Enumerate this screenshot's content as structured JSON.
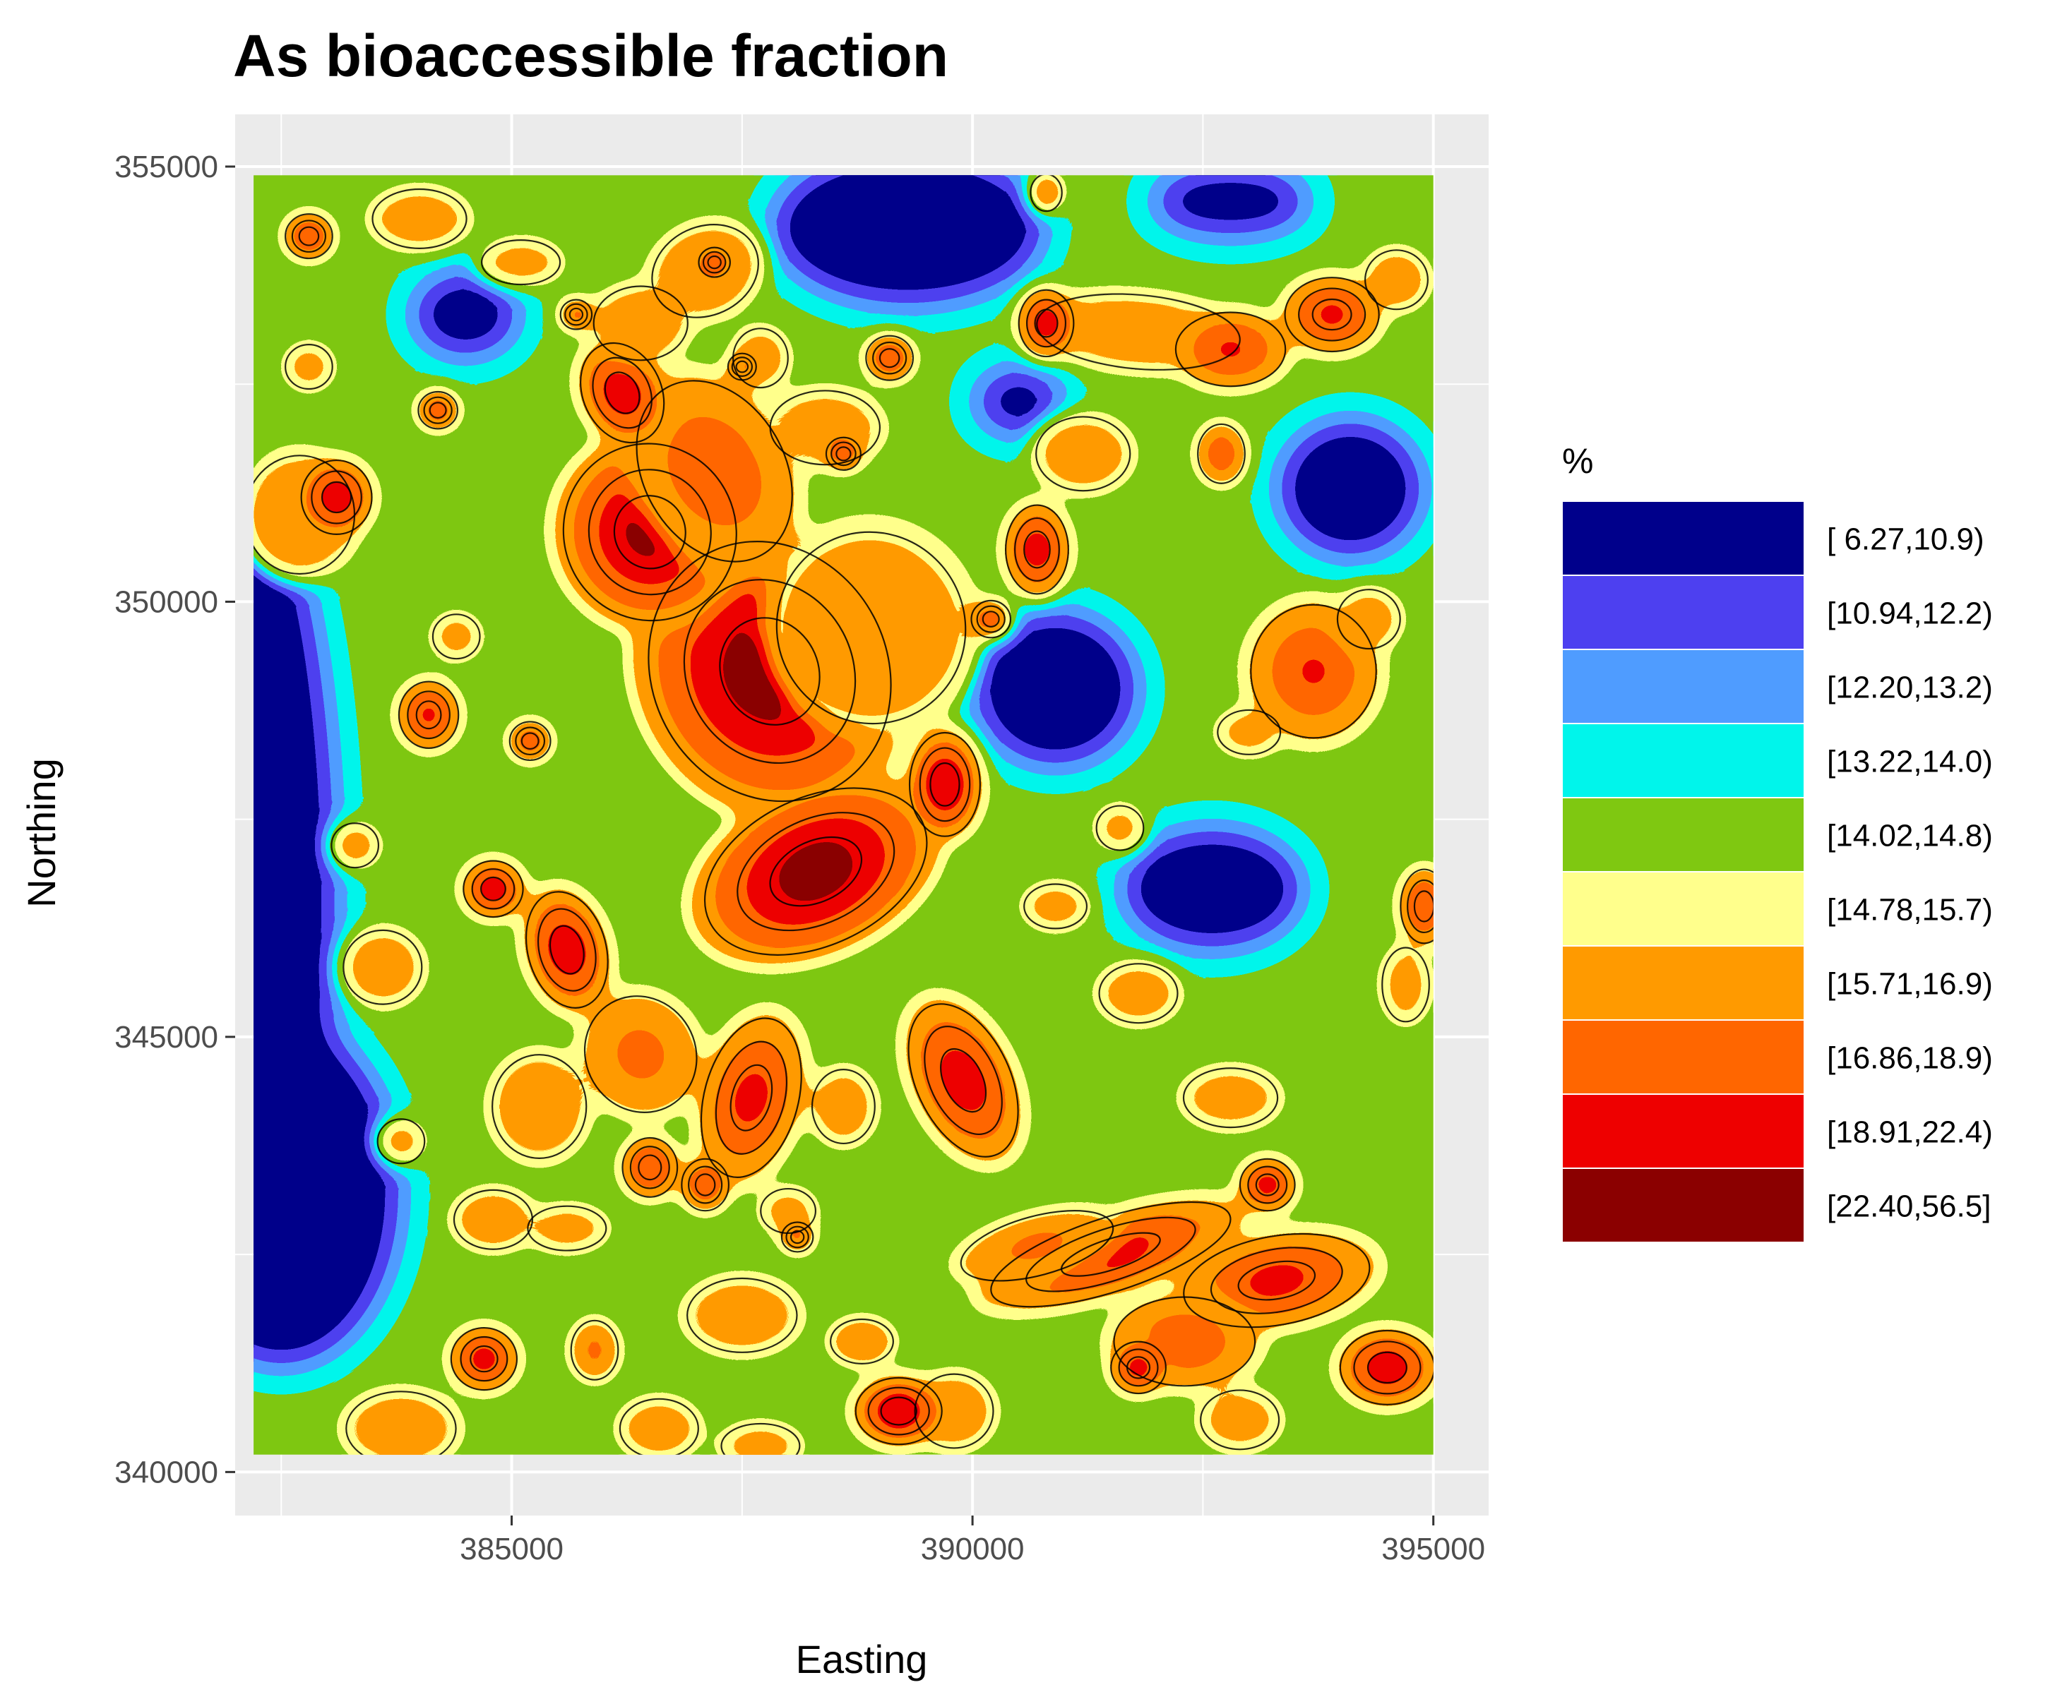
{
  "chart_data": {
    "type": "heatmap",
    "title": "As bioaccessible fraction",
    "xlabel": "Easting",
    "ylabel": "Northing",
    "xlim": [
      382000,
      395600
    ],
    "ylim": [
      339500,
      355600
    ],
    "data_extent": {
      "x": [
        382200,
        395000
      ],
      "y": [
        340200,
        354900
      ]
    },
    "x_ticks": [
      385000,
      390000,
      395000
    ],
    "x_tick_labels": [
      "385000",
      "390000",
      "395000"
    ],
    "y_ticks": [
      340000,
      345000,
      350000,
      355000
    ],
    "y_tick_labels": [
      "340000",
      "345000",
      "350000",
      "355000"
    ],
    "grid": true,
    "panel_background": "#ebebeb",
    "legend": {
      "title": "%",
      "position": "right",
      "classes": [
        {
          "label": "[ 6.27,10.9)",
          "color": "#00008b"
        },
        {
          "label": "[10.94,12.2)",
          "color": "#4d40f0"
        },
        {
          "label": "[12.20,13.2)",
          "color": "#4f9cff"
        },
        {
          "label": "[13.22,14.0)",
          "color": "#00f5eb"
        },
        {
          "label": "[14.02,14.8)",
          "color": "#7fc811"
        },
        {
          "label": "[14.78,15.7)",
          "color": "#ffff8c"
        },
        {
          "label": "[15.71,16.9)",
          "color": "#ff9a00"
        },
        {
          "label": "[16.86,18.9)",
          "color": "#ff6600"
        },
        {
          "label": "[18.91,22.4)",
          "color": "#ee0000"
        },
        {
          "label": "[22.40,56.5]",
          "color": "#8b0000"
        }
      ]
    },
    "hotspots": [
      {
        "x": 387800,
        "y": 349200,
        "rx": 1500,
        "ry": 1800,
        "level": 9.5,
        "angle": -28
      },
      {
        "x": 388300,
        "y": 346900,
        "rx": 1500,
        "ry": 1000,
        "level": 9.3,
        "angle": -25
      },
      {
        "x": 386500,
        "y": 350800,
        "rx": 1100,
        "ry": 1200,
        "level": 9.0,
        "angle": -20
      },
      {
        "x": 387200,
        "y": 351500,
        "rx": 900,
        "ry": 1300,
        "level": 7.5,
        "angle": -30
      },
      {
        "x": 386200,
        "y": 352400,
        "rx": 500,
        "ry": 700,
        "level": 8.5,
        "angle": -25
      },
      {
        "x": 389700,
        "y": 347900,
        "rx": 450,
        "ry": 700,
        "level": 8.8,
        "angle": 0
      },
      {
        "x": 389900,
        "y": 344500,
        "rx": 600,
        "ry": 1100,
        "level": 8.3,
        "angle": -25
      },
      {
        "x": 387600,
        "y": 344300,
        "rx": 600,
        "ry": 1100,
        "level": 8.0,
        "angle": 15
      },
      {
        "x": 385600,
        "y": 346000,
        "rx": 500,
        "ry": 800,
        "level": 8.5,
        "angle": -15
      },
      {
        "x": 384800,
        "y": 346700,
        "rx": 380,
        "ry": 380,
        "level": 8.7,
        "angle": 0
      },
      {
        "x": 385200,
        "y": 348400,
        "rx": 260,
        "ry": 260,
        "level": 8.3,
        "angle": 0
      },
      {
        "x": 386400,
        "y": 344800,
        "rx": 700,
        "ry": 800,
        "level": 7.0,
        "angle": -30
      },
      {
        "x": 386500,
        "y": 343500,
        "rx": 350,
        "ry": 400,
        "level": 8.2,
        "angle": 0
      },
      {
        "x": 387100,
        "y": 343300,
        "rx": 300,
        "ry": 350,
        "level": 8.0,
        "angle": 0
      },
      {
        "x": 385300,
        "y": 344200,
        "rx": 600,
        "ry": 700,
        "level": 6.4,
        "angle": 0
      },
      {
        "x": 391500,
        "y": 342500,
        "rx": 1600,
        "ry": 500,
        "level": 8.2,
        "angle": -18
      },
      {
        "x": 393300,
        "y": 342200,
        "rx": 1200,
        "ry": 600,
        "level": 8.0,
        "angle": -10
      },
      {
        "x": 394500,
        "y": 341200,
        "rx": 600,
        "ry": 500,
        "level": 8.5,
        "angle": 0
      },
      {
        "x": 392300,
        "y": 341500,
        "rx": 900,
        "ry": 600,
        "level": 7.5,
        "angle": 0
      },
      {
        "x": 391800,
        "y": 341200,
        "rx": 350,
        "ry": 350,
        "level": 8.6,
        "angle": 0
      },
      {
        "x": 393200,
        "y": 343300,
        "rx": 350,
        "ry": 350,
        "level": 8.6,
        "angle": 0
      },
      {
        "x": 390700,
        "y": 342600,
        "rx": 1000,
        "ry": 400,
        "level": 7.0,
        "angle": -15
      },
      {
        "x": 389200,
        "y": 340700,
        "rx": 550,
        "ry": 450,
        "level": 8.8,
        "angle": 0
      },
      {
        "x": 389800,
        "y": 340700,
        "rx": 500,
        "ry": 500,
        "level": 6.5,
        "angle": 0
      },
      {
        "x": 387500,
        "y": 341800,
        "rx": 700,
        "ry": 500,
        "level": 6.3,
        "angle": 0
      },
      {
        "x": 388800,
        "y": 341500,
        "rx": 400,
        "ry": 300,
        "level": 7.0,
        "angle": 0
      },
      {
        "x": 384700,
        "y": 341300,
        "rx": 420,
        "ry": 420,
        "level": 8.4,
        "angle": 0
      },
      {
        "x": 385900,
        "y": 341400,
        "rx": 300,
        "ry": 400,
        "level": 7.2,
        "angle": 0
      },
      {
        "x": 385600,
        "y": 342800,
        "rx": 500,
        "ry": 300,
        "level": 6.2,
        "angle": 0
      },
      {
        "x": 384800,
        "y": 342900,
        "rx": 500,
        "ry": 400,
        "level": 6.5,
        "angle": 0
      },
      {
        "x": 383800,
        "y": 343800,
        "rx": 300,
        "ry": 300,
        "level": 6.2,
        "angle": 0
      },
      {
        "x": 383600,
        "y": 345800,
        "rx": 500,
        "ry": 500,
        "level": 6.3,
        "angle": 0
      },
      {
        "x": 383100,
        "y": 351200,
        "rx": 450,
        "ry": 500,
        "level": 8.5,
        "angle": 0
      },
      {
        "x": 382800,
        "y": 354200,
        "rx": 300,
        "ry": 300,
        "level": 8.4,
        "angle": 0
      },
      {
        "x": 382700,
        "y": 351000,
        "rx": 700,
        "ry": 800,
        "level": 6.5,
        "angle": 0
      },
      {
        "x": 382800,
        "y": 352700,
        "rx": 300,
        "ry": 300,
        "level": 6.3,
        "angle": 0
      },
      {
        "x": 384200,
        "y": 352200,
        "rx": 250,
        "ry": 250,
        "level": 8.4,
        "angle": 0
      },
      {
        "x": 384100,
        "y": 348700,
        "rx": 380,
        "ry": 450,
        "level": 8.2,
        "angle": 0
      },
      {
        "x": 384400,
        "y": 349600,
        "rx": 300,
        "ry": 300,
        "level": 6.3,
        "angle": 0
      },
      {
        "x": 383300,
        "y": 347200,
        "rx": 300,
        "ry": 300,
        "level": 6.4,
        "angle": 0
      },
      {
        "x": 384000,
        "y": 354400,
        "rx": 600,
        "ry": 400,
        "level": 6.3,
        "angle": 0
      },
      {
        "x": 385100,
        "y": 353900,
        "rx": 500,
        "ry": 300,
        "level": 6.2,
        "angle": 0
      },
      {
        "x": 387100,
        "y": 353800,
        "rx": 700,
        "ry": 600,
        "level": 6.5,
        "angle": -25
      },
      {
        "x": 387200,
        "y": 353900,
        "rx": 200,
        "ry": 200,
        "level": 8.4,
        "angle": 0
      },
      {
        "x": 385700,
        "y": 353300,
        "rx": 200,
        "ry": 200,
        "level": 8.4,
        "angle": 0
      },
      {
        "x": 386400,
        "y": 353200,
        "rx": 600,
        "ry": 500,
        "level": 6.4,
        "angle": 0
      },
      {
        "x": 387700,
        "y": 352800,
        "rx": 350,
        "ry": 400,
        "level": 6.4,
        "angle": 0
      },
      {
        "x": 387500,
        "y": 352700,
        "rx": 180,
        "ry": 180,
        "level": 8.1,
        "angle": 0
      },
      {
        "x": 388600,
        "y": 351700,
        "rx": 220,
        "ry": 220,
        "level": 8.6,
        "angle": 0
      },
      {
        "x": 388400,
        "y": 352000,
        "rx": 700,
        "ry": 500,
        "level": 6.2,
        "angle": 0
      },
      {
        "x": 389100,
        "y": 352800,
        "rx": 300,
        "ry": 300,
        "level": 8.3,
        "angle": 0
      },
      {
        "x": 388900,
        "y": 349700,
        "rx": 1200,
        "ry": 1300,
        "level": 6.4,
        "angle": -25
      },
      {
        "x": 390700,
        "y": 350600,
        "rx": 400,
        "ry": 600,
        "level": 8.4,
        "angle": 0
      },
      {
        "x": 390800,
        "y": 353200,
        "rx": 350,
        "ry": 450,
        "level": 8.6,
        "angle": 0
      },
      {
        "x": 390800,
        "y": 354700,
        "rx": 200,
        "ry": 250,
        "level": 7.8,
        "angle": 0
      },
      {
        "x": 391800,
        "y": 353100,
        "rx": 1300,
        "ry": 500,
        "level": 6.3,
        "angle": 5
      },
      {
        "x": 392800,
        "y": 352900,
        "rx": 700,
        "ry": 500,
        "level": 7.9,
        "angle": 0
      },
      {
        "x": 393900,
        "y": 353300,
        "rx": 600,
        "ry": 500,
        "level": 8.0,
        "angle": 0
      },
      {
        "x": 394600,
        "y": 353700,
        "rx": 400,
        "ry": 400,
        "level": 6.5,
        "angle": 0
      },
      {
        "x": 392700,
        "y": 351700,
        "rx": 300,
        "ry": 400,
        "level": 7.8,
        "angle": 0
      },
      {
        "x": 391200,
        "y": 351700,
        "rx": 600,
        "ry": 500,
        "level": 6.3,
        "angle": 0
      },
      {
        "x": 390200,
        "y": 349800,
        "rx": 250,
        "ry": 250,
        "level": 8.2,
        "angle": 0
      },
      {
        "x": 393700,
        "y": 349200,
        "rx": 800,
        "ry": 900,
        "level": 7.7,
        "angle": 0
      },
      {
        "x": 394300,
        "y": 349800,
        "rx": 400,
        "ry": 400,
        "level": 6.3,
        "angle": 0
      },
      {
        "x": 393000,
        "y": 348500,
        "rx": 400,
        "ry": 300,
        "level": 6.2,
        "angle": 0
      },
      {
        "x": 394900,
        "y": 346500,
        "rx": 300,
        "ry": 500,
        "level": 8.2,
        "angle": 0
      },
      {
        "x": 394700,
        "y": 345600,
        "rx": 300,
        "ry": 500,
        "level": 6.2,
        "angle": 0
      },
      {
        "x": 390900,
        "y": 346500,
        "rx": 400,
        "ry": 300,
        "level": 6.3,
        "angle": 0
      },
      {
        "x": 391800,
        "y": 345500,
        "rx": 500,
        "ry": 400,
        "level": 6.3,
        "angle": 0
      },
      {
        "x": 392800,
        "y": 344300,
        "rx": 600,
        "ry": 400,
        "level": 6.2,
        "angle": 0
      },
      {
        "x": 391600,
        "y": 347400,
        "rx": 300,
        "ry": 300,
        "level": 6.2,
        "angle": 0
      },
      {
        "x": 388600,
        "y": 344200,
        "rx": 400,
        "ry": 500,
        "level": 6.3,
        "angle": 0
      },
      {
        "x": 388000,
        "y": 343000,
        "rx": 350,
        "ry": 300,
        "level": 6.2,
        "angle": 0
      },
      {
        "x": 388100,
        "y": 342700,
        "rx": 200,
        "ry": 200,
        "level": 8.3,
        "angle": 0
      },
      {
        "x": 383800,
        "y": 340500,
        "rx": 700,
        "ry": 500,
        "level": 6.3,
        "angle": 0
      },
      {
        "x": 386600,
        "y": 340500,
        "rx": 500,
        "ry": 400,
        "level": 6.3,
        "angle": 0
      },
      {
        "x": 387700,
        "y": 340300,
        "rx": 500,
        "ry": 300,
        "level": 6.2,
        "angle": 0
      },
      {
        "x": 392900,
        "y": 340600,
        "rx": 500,
        "ry": 400,
        "level": 6.2,
        "angle": 0
      }
    ],
    "low_zones": [
      {
        "x": 382200,
        "y": 346500,
        "rx": 900,
        "ry": 4800,
        "angle": 0
      },
      {
        "x": 382500,
        "y": 343200,
        "rx": 1300,
        "ry": 2000,
        "angle": 0
      },
      {
        "x": 389300,
        "y": 354300,
        "rx": 1500,
        "ry": 900,
        "angle": 0
      },
      {
        "x": 390900,
        "y": 349000,
        "rx": 900,
        "ry": 900,
        "angle": 0
      },
      {
        "x": 392600,
        "y": 346700,
        "rx": 1000,
        "ry": 700,
        "angle": 0
      },
      {
        "x": 394100,
        "y": 351300,
        "rx": 800,
        "ry": 800,
        "angle": 0
      },
      {
        "x": 384500,
        "y": 353300,
        "rx": 600,
        "ry": 500,
        "angle": 0
      },
      {
        "x": 392800,
        "y": 354600,
        "rx": 900,
        "ry": 400,
        "angle": 0
      },
      {
        "x": 390500,
        "y": 352300,
        "rx": 500,
        "ry": 400,
        "angle": 0
      }
    ]
  }
}
